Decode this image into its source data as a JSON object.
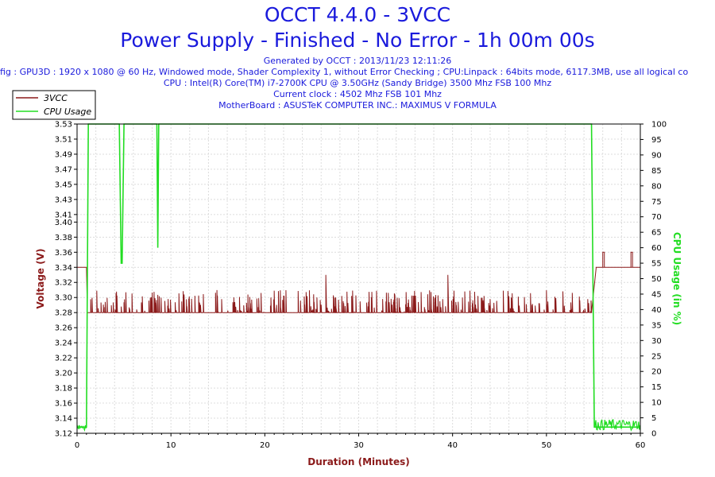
{
  "header": {
    "title_line1": "OCCT 4.4.0 - 3VCC",
    "title_line2": "Power Supply - Finished - No Error - 1h 00m 00s",
    "generated": "Generated by OCCT : 2013/11/23 12:11:26",
    "config": "fig : GPU3D : 1920 x 1080 @ 60 Hz, Windowed mode, Shader Complexity 1, without Error Checking ; CPU:Linpack : 64bits mode, 6117.3MB, use all logical co",
    "cpu": "CPU : Intel(R) Core(TM) i7-2700K CPU @ 3.50GHz (Sandy Bridge) 3500 Mhz FSB 100 Mhz",
    "clock": "Current clock : 4502 Mhz FSB 101 Mhz",
    "motherboard": "MotherBoard : ASUSTeK COMPUTER INC.: MAXIMUS V FORMULA"
  },
  "colors": {
    "voltage": "#8b1a1a",
    "cpu": "#22dd22",
    "title": "#1a1adc",
    "grid": "#dcdcdc"
  },
  "chart_data": {
    "type": "line",
    "xlabel": "Duration (Minutes)",
    "ylabel": "Voltage (V)",
    "y2label": "CPU Usage (in %)",
    "xlim": [
      0,
      60
    ],
    "ylim": [
      3.12,
      3.53
    ],
    "y2lim": [
      0,
      100
    ],
    "x_ticks": [
      0,
      10,
      20,
      30,
      40,
      50,
      60
    ],
    "y_ticks": [
      3.12,
      3.14,
      3.16,
      3.18,
      3.2,
      3.22,
      3.24,
      3.26,
      3.28,
      3.3,
      3.32,
      3.34,
      3.36,
      3.38,
      3.4,
      3.41,
      3.43,
      3.45,
      3.47,
      3.49,
      3.51,
      3.53
    ],
    "y2_ticks": [
      0,
      5,
      10,
      15,
      20,
      25,
      30,
      35,
      40,
      45,
      50,
      55,
      60,
      65,
      70,
      75,
      80,
      85,
      90,
      95,
      100
    ],
    "grid": true,
    "legend": {
      "placement": "top-left",
      "entries": [
        "3VCC",
        "CPU Usage"
      ]
    },
    "series": [
      {
        "name": "3VCC",
        "axis": "left",
        "color": "#8b1a1a",
        "x": [
          0,
          1.0,
          1.1,
          4.5,
          5.0,
          8.2,
          8.8,
          26.5,
          39.5,
          54.8,
          55.3,
          56.0,
          60
        ],
        "y": [
          3.34,
          3.34,
          3.28,
          3.28,
          3.28,
          3.28,
          3.28,
          3.28,
          3.28,
          3.28,
          3.34,
          3.34,
          3.34
        ],
        "noise_band": [
          3.28,
          3.31
        ],
        "spikes": [
          {
            "x": 26.5,
            "y": 3.33
          },
          {
            "x": 39.5,
            "y": 3.33
          },
          {
            "x": 56.0,
            "y": 3.36
          },
          {
            "x": 59.0,
            "y": 3.36
          }
        ]
      },
      {
        "name": "CPU Usage",
        "axis": "right",
        "color": "#22dd22",
        "x": [
          0,
          1.0,
          1.2,
          4.5,
          4.7,
          4.8,
          5.0,
          8.5,
          8.6,
          8.7,
          54.8,
          55.1,
          60
        ],
        "y": [
          2,
          2,
          100,
          100,
          55,
          55,
          100,
          100,
          60,
          100,
          100,
          2,
          2
        ]
      }
    ]
  }
}
